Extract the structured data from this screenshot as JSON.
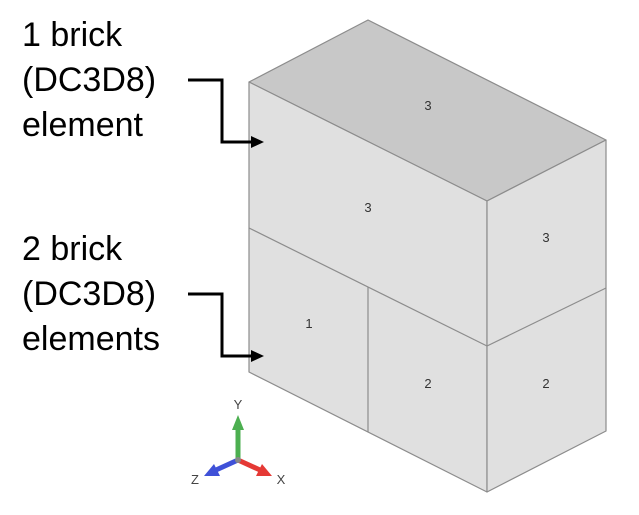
{
  "callouts": {
    "upper": {
      "line1": "1 brick",
      "line2": "(DC3D8)",
      "line3": "element"
    },
    "lower": {
      "line1": "2 brick",
      "line2": "(DC3D8)",
      "line3": "elements"
    }
  },
  "element_labels": {
    "top_face": "3",
    "front_upper": "3",
    "side_upper": "3",
    "front_lower_left": "1",
    "front_lower_right": "2",
    "side_lower": "2"
  },
  "axes": {
    "y": "Y",
    "x": "X",
    "z": "Z"
  },
  "colors": {
    "top_face": "#c8c8c8",
    "front_face": "#e0e0e0",
    "side_face": "#e0e0e0",
    "edge": "#8c8c8c",
    "callout": "#000000",
    "axis_y": "#4caf50",
    "axis_x": "#e53935",
    "axis_z": "#3f51d8"
  }
}
